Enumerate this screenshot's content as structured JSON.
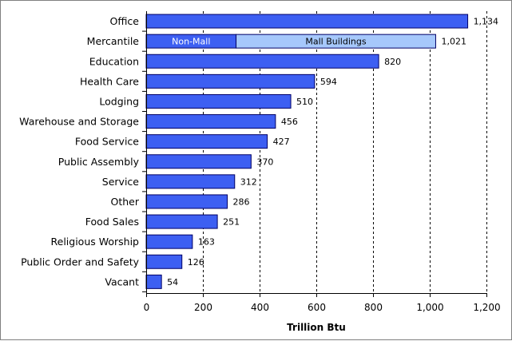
{
  "chart_data": {
    "type": "bar",
    "orientation": "horizontal",
    "categories": [
      "Office",
      "Mercantile",
      "Education",
      "Health Care",
      "Lodging",
      "Warehouse and Storage",
      "Food Service",
      "Public Assembly",
      "Service",
      "Other",
      "Food Sales",
      "Religious Worship",
      "Public Order and Safety",
      "Vacant"
    ],
    "values": [
      1134,
      1021,
      820,
      594,
      510,
      456,
      427,
      370,
      312,
      286,
      251,
      163,
      126,
      54
    ],
    "value_labels": [
      "1,134",
      "1,021",
      "820",
      "594",
      "510",
      "456",
      "427",
      "370",
      "312",
      "286",
      "251",
      "163",
      "126",
      "54"
    ],
    "mercantile_breakdown": {
      "category": "Mercantile",
      "segments": [
        {
          "name": "Non-Mall",
          "value": 317
        },
        {
          "name": "Mall Buildings",
          "value": 704
        }
      ]
    },
    "xlabel": "Trillion Btu",
    "ylabel": "",
    "xlim": [
      0,
      1200
    ],
    "xticks": [
      0,
      200,
      400,
      600,
      800,
      1000,
      1200
    ],
    "xtick_labels": [
      "0",
      "200",
      "400",
      "600",
      "800",
      "1,000",
      "1,200"
    ],
    "grid": "vertical dashed",
    "colors": {
      "bar": "#3d5ff2",
      "mall": "#a6c8fb",
      "border": "#000066"
    }
  }
}
